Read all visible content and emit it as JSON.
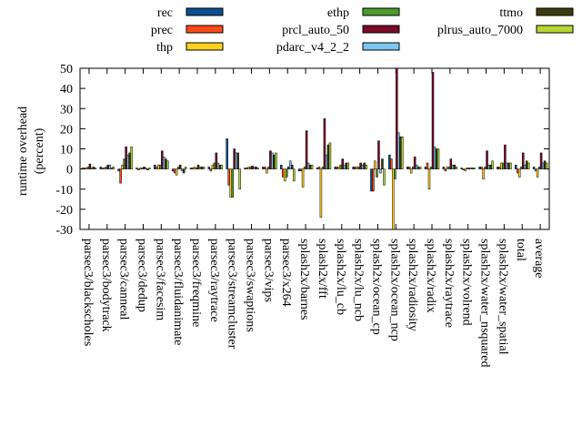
{
  "chart_data": {
    "type": "bar",
    "y_label": [
      "runtime overhead",
      "(percent)"
    ],
    "categories": [
      "parsec3/blackscholes",
      "parsec3/bodytrack",
      "parsec3/canneal",
      "parsec3/dedup",
      "parsec3/facesim",
      "parsec3/fluidanimate",
      "parsec3/freqmine",
      "parsec3/raytrace",
      "parsec3/streamcluster",
      "parsec3/swaptions",
      "parsec3/vips",
      "parsec3/x264",
      "splash2x/barnes",
      "splash2x/fft",
      "splash2x/lu_cb",
      "splash2x/lu_ncb",
      "splash2x/ocean_cp",
      "splash2x/ocean_ncp",
      "splash2x/radiosity",
      "splash2x/radix",
      "splash2x/raytrace",
      "splash2x/volrend",
      "splash2x/water_nsquared",
      "splash2x/water_spatial",
      "total",
      "average"
    ],
    "series": [
      {
        "name": "rec",
        "color": "#0b4f8f",
        "values": [
          0.5,
          1,
          -1,
          0.5,
          2,
          -1,
          0.5,
          1,
          15,
          0.5,
          1,
          2,
          -1,
          0.5,
          1,
          1,
          -11,
          7,
          1,
          1,
          1,
          0.5,
          1,
          1,
          2,
          1
        ]
      },
      {
        "name": "prec",
        "color": "#ff4a1a",
        "values": [
          0.5,
          0.5,
          -7,
          -0.5,
          1,
          -2,
          0.5,
          -1,
          -8,
          0.5,
          1,
          -4,
          -1,
          1,
          1,
          1,
          -11,
          5,
          1,
          3,
          -1,
          -0.5,
          1,
          1,
          -2,
          -1
        ]
      },
      {
        "name": "thp",
        "color": "#ffd21f",
        "values": [
          0.5,
          0.5,
          2,
          0.5,
          2,
          -3,
          1,
          2,
          -14,
          1,
          -2,
          -6,
          -9,
          -24,
          1,
          1,
          4,
          -30,
          -2,
          -10,
          1,
          -1,
          -5,
          3,
          -4,
          -4
        ]
      },
      {
        "name": "ethp",
        "color": "#4e9a2c",
        "values": [
          1,
          1,
          5,
          0.5,
          2,
          1,
          0.5,
          3,
          -14,
          1,
          1,
          -4,
          1,
          1,
          2,
          1,
          -4,
          -5,
          1,
          1,
          1,
          0.5,
          1,
          3,
          1,
          1
        ]
      },
      {
        "name": "prcl_auto_50",
        "color": "#7a0a28",
        "values": [
          2.5,
          2,
          11,
          1,
          9,
          2,
          2,
          8,
          10,
          1.5,
          9,
          1,
          19,
          25,
          5,
          3,
          14,
          50,
          6,
          48,
          5,
          0.5,
          9,
          12,
          8,
          8
        ]
      },
      {
        "name": "pdarc_v4_2_2",
        "color": "#7cc6f2",
        "values": [
          0.5,
          2,
          7,
          0.5,
          6,
          -1,
          1,
          3,
          8,
          1,
          8,
          4,
          3,
          7,
          2,
          2,
          -2,
          18,
          2,
          11,
          2,
          0.5,
          2,
          3,
          2,
          3
        ]
      },
      {
        "name": "ttmo",
        "color": "#3b3b0f",
        "values": [
          1,
          0.5,
          8,
          -0.5,
          5,
          -2,
          1,
          2,
          8,
          1,
          7,
          2,
          2,
          12,
          3,
          3,
          5,
          16,
          1,
          10,
          2,
          0.5,
          2,
          3,
          4,
          4
        ]
      },
      {
        "name": "plrus_auto_7000",
        "color": "#b6d631",
        "values": [
          0.5,
          1,
          11,
          0.5,
          4,
          1,
          1,
          2,
          -10,
          0.5,
          8,
          -6,
          2,
          13,
          3,
          2,
          -8,
          16,
          1,
          10,
          1,
          0.5,
          4,
          3,
          3,
          3
        ]
      }
    ],
    "ylim": [
      -30,
      50
    ],
    "yticks": [
      -30,
      -20,
      -10,
      0,
      10,
      20,
      30,
      40,
      50
    ]
  }
}
